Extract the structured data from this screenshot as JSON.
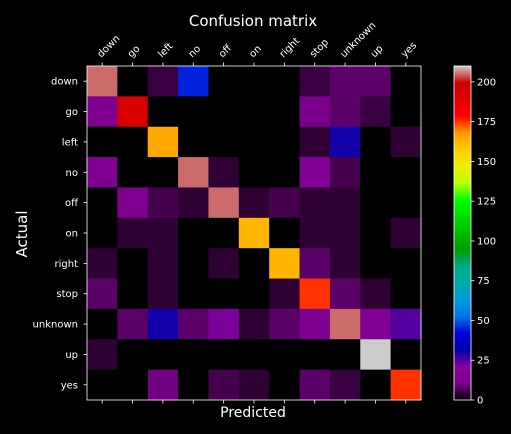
{
  "chart_data": {
    "type": "heatmap",
    "title": "Confusion matrix",
    "xlabel": "Predicted",
    "ylabel": "Actual",
    "x_labels": [
      "down",
      "go",
      "left",
      "no",
      "off",
      "on",
      "right",
      "stop",
      "unknown",
      "up",
      "yes"
    ],
    "y_labels": [
      "down",
      "go",
      "left",
      "no",
      "off",
      "on",
      "right",
      "stop",
      "unknown",
      "up",
      "yes"
    ],
    "values": [
      [
        205,
        0,
        5,
        45,
        0,
        0,
        0,
        5,
        8,
        8,
        0
      ],
      [
        15,
        190,
        0,
        0,
        0,
        0,
        0,
        12,
        8,
        5,
        0
      ],
      [
        0,
        0,
        165,
        0,
        0,
        0,
        0,
        4,
        30,
        0,
        4
      ],
      [
        15,
        0,
        0,
        205,
        4,
        0,
        0,
        18,
        6,
        0,
        0
      ],
      [
        0,
        15,
        6,
        4,
        205,
        4,
        6,
        4,
        4,
        0,
        0
      ],
      [
        0,
        4,
        4,
        0,
        0,
        162,
        0,
        4,
        4,
        0,
        4
      ],
      [
        4,
        0,
        4,
        0,
        4,
        0,
        162,
        8,
        4,
        0,
        0
      ],
      [
        8,
        0,
        4,
        0,
        0,
        0,
        4,
        175,
        8,
        4,
        0
      ],
      [
        0,
        8,
        30,
        8,
        22,
        4,
        8,
        14,
        205,
        18,
        25
      ],
      [
        4,
        0,
        0,
        0,
        0,
        0,
        0,
        0,
        0,
        210,
        0
      ],
      [
        0,
        0,
        10,
        0,
        6,
        4,
        0,
        8,
        5,
        0,
        175
      ]
    ],
    "vmin": 0,
    "vmax": 210,
    "colormap": "nipy_spectral",
    "colorbar_ticks": [
      0,
      25,
      50,
      75,
      100,
      125,
      150,
      175,
      200
    ],
    "background": "#000000",
    "grid": false
  }
}
